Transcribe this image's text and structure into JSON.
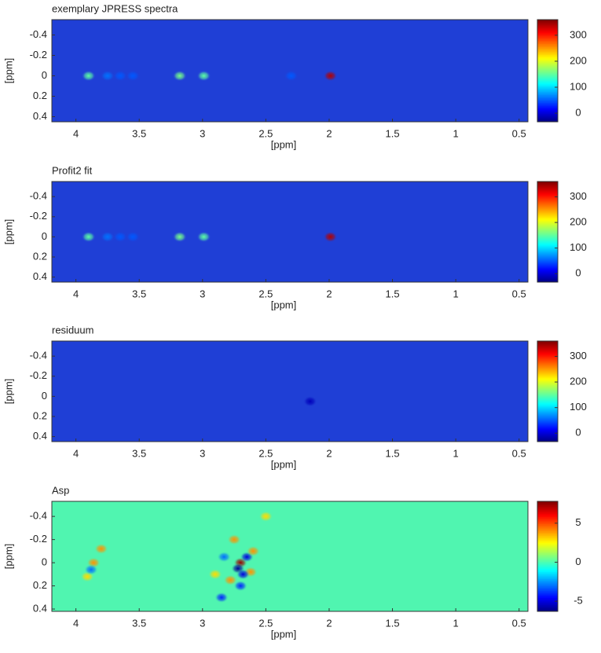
{
  "chart_data": [
    {
      "type": "heatmap",
      "title": "exemplary JPRESS spectra",
      "xlabel": "[ppm]",
      "ylabel": "[ppm]",
      "colormap": "jet",
      "background_color": "#1f3fd6",
      "xlim": [
        4.19,
        0.43
      ],
      "xticks": [
        4,
        3.5,
        3,
        2.5,
        2,
        1.5,
        1,
        0.5
      ],
      "ylim": [
        -0.55,
        0.45
      ],
      "yticks": [
        -0.4,
        -0.2,
        0,
        0.2,
        0.4
      ],
      "clim": [
        -33,
        360
      ],
      "cticks": [
        0,
        100,
        200,
        300
      ],
      "peaks": {
        "x": [
          3.9,
          3.75,
          3.65,
          3.55,
          3.18,
          2.99,
          2.3,
          1.99
        ],
        "y": [
          0,
          0,
          0,
          0,
          0,
          0,
          0,
          0
        ],
        "values": [
          150,
          60,
          50,
          50,
          160,
          150,
          50,
          340
        ]
      }
    },
    {
      "type": "heatmap",
      "title": "Profit2 fit",
      "xlabel": "[ppm]",
      "ylabel": "[ppm]",
      "colormap": "jet",
      "background_color": "#1f3fd6",
      "xlim": [
        4.19,
        0.43
      ],
      "xticks": [
        4,
        3.5,
        3,
        2.5,
        2,
        1.5,
        1,
        0.5
      ],
      "ylim": [
        -0.55,
        0.45
      ],
      "yticks": [
        -0.4,
        -0.2,
        0,
        0.2,
        0.4
      ],
      "clim": [
        -33,
        360
      ],
      "cticks": [
        0,
        100,
        200,
        300
      ],
      "peaks": {
        "x": [
          3.9,
          3.75,
          3.65,
          3.55,
          3.18,
          2.99,
          1.99
        ],
        "y": [
          0,
          0,
          0,
          0,
          0,
          0,
          0
        ],
        "values": [
          150,
          60,
          50,
          50,
          160,
          150,
          340
        ]
      }
    },
    {
      "type": "heatmap",
      "title": "residuum",
      "xlabel": "[ppm]",
      "ylabel": "[ppm]",
      "colormap": "jet",
      "background_color": "#1f3fd6",
      "xlim": [
        4.19,
        0.43
      ],
      "xticks": [
        4,
        3.5,
        3,
        2.5,
        2,
        1.5,
        1,
        0.5
      ],
      "ylim": [
        -0.55,
        0.45
      ],
      "yticks": [
        -0.4,
        -0.2,
        0,
        0.2,
        0.4
      ],
      "clim": [
        -33,
        360
      ],
      "cticks": [
        0,
        100,
        200,
        300
      ],
      "peaks": {
        "x": [
          2.15
        ],
        "y": [
          0.05
        ],
        "values": [
          -10
        ]
      }
    },
    {
      "type": "heatmap",
      "title": "Asp",
      "xlabel": "[ppm]",
      "ylabel": "[ppm]",
      "colormap": "jet",
      "background_color": "#50f5b0",
      "xlim": [
        4.19,
        0.43
      ],
      "xticks": [
        4,
        3.5,
        3,
        2.5,
        2,
        1.5,
        1,
        0.5
      ],
      "ylim": [
        -0.53,
        0.42
      ],
      "yticks": [
        -0.4,
        -0.2,
        0,
        0.2,
        0.4
      ],
      "clim": [
        -6.3,
        7.8
      ],
      "cticks": [
        -5,
        0,
        5
      ],
      "peaks": {
        "x": [
          3.8,
          3.86,
          3.91,
          3.88,
          2.7,
          2.72,
          2.65,
          2.75,
          2.6,
          2.62,
          2.68,
          2.78,
          2.7,
          2.85,
          2.5,
          2.83,
          2.9
        ],
        "y": [
          -0.12,
          0,
          0.12,
          0.06,
          0,
          0.05,
          -0.05,
          -0.2,
          -0.1,
          0.08,
          0.1,
          0.15,
          0.2,
          0.3,
          -0.4,
          -0.05,
          0.1
        ],
        "values": [
          4,
          4,
          3,
          -3,
          7.5,
          -6,
          -5,
          4,
          4,
          4,
          -5,
          4,
          -4,
          -4,
          3,
          -3,
          3
        ]
      }
    }
  ]
}
